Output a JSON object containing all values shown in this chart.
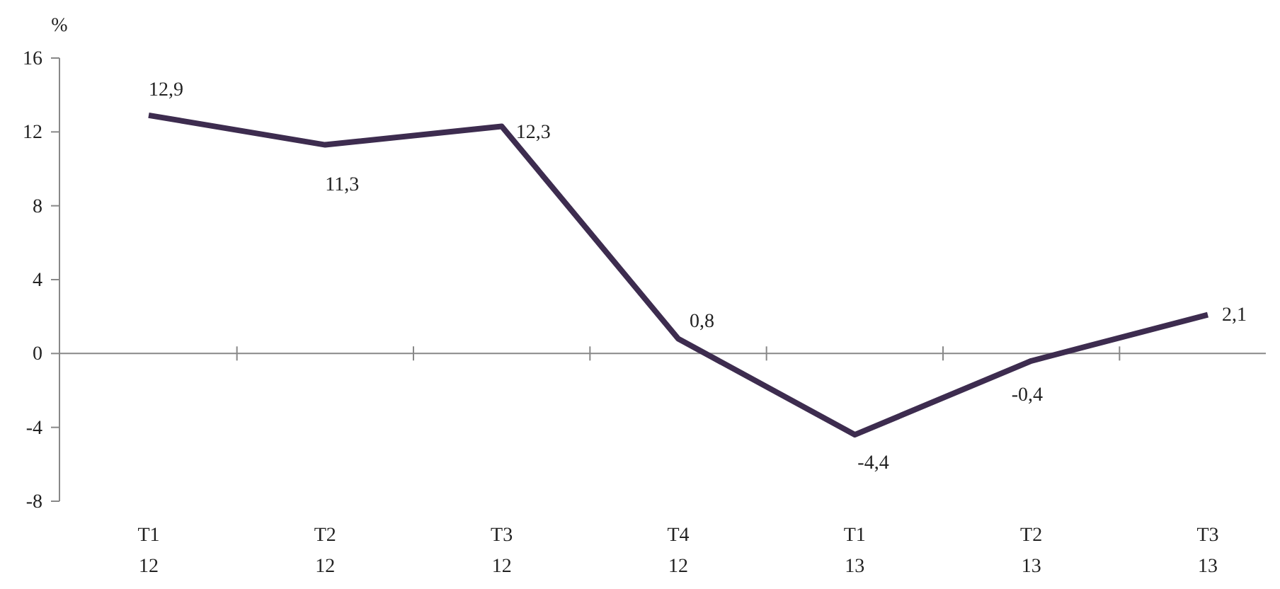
{
  "chart_data": {
    "type": "line",
    "ylabel": "%",
    "categories": [
      "T1\n12",
      "T2\n12",
      "T3\n12",
      "T4\n12",
      "T1\n13",
      "T2\n13",
      "T3\n13"
    ],
    "series": [
      {
        "color": "#3d2c4f",
        "values": [
          12.9,
          11.3,
          12.3,
          0.8,
          -4.4,
          -0.4,
          2.1
        ],
        "value_labels": [
          "12,9",
          "11,3",
          "12,3",
          "0,8",
          "-4,4",
          "-0,4",
          "2,1"
        ]
      }
    ],
    "ylim": [
      -8,
      16
    ],
    "yticks": [
      -8,
      -4,
      0,
      4,
      8,
      12,
      16
    ],
    "marker": "none",
    "line_style": "solid"
  }
}
